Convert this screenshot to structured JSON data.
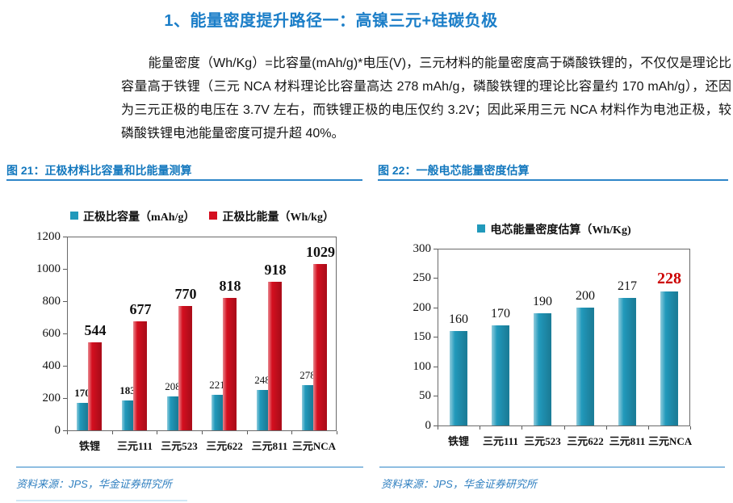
{
  "page": {
    "title": "1、能量密度提升路径一：高镍三元+硅碳负极",
    "paragraph": "能量密度（Wh/Kg）=比容量(mAh/g)*电压(V)，三元材料的能量密度高于磷酸铁锂的，不仅仅是理论比容量高于铁锂（三元 NCA 材料理论比容量高达 278 mAh/g，磷酸铁锂的理论比容量约 170 mAh/g），还因为三元正极的电压在 3.7V 左右，而铁锂正极的电压仅约 3.2V；因此采用三元 NCA 材料作为电池正极，较磷酸铁锂电池能量密度可提升超 40%。"
  },
  "colors": {
    "title_blue": "#1b7ec8",
    "caption_blue": "#1378be",
    "rule_blue": "#2e86c8",
    "source_blue": "#2f7fc0",
    "axis_gray": "#5a5a5a",
    "teal_bar": "#2199bb",
    "red_bar": "#d40f1f",
    "highlight_red": "#cc0000"
  },
  "figures": [
    {
      "caption": "图 21：正极材料比容量和比能量测算",
      "source": "资料来源：JPS，华金证券研究所"
    },
    {
      "caption": "图 22：一般电芯能量密度估算",
      "source": "资料来源：JPS，华金证券研究所"
    }
  ],
  "chart_data": [
    {
      "type": "bar",
      "title": "图 21：正极材料比容量和比能量测算",
      "categories": [
        "铁锂",
        "三元111",
        "三元523",
        "三元622",
        "三元811",
        "三元NCA"
      ],
      "series": [
        {
          "name": "正极比容量（mAh/g）",
          "color": "#2199bb",
          "values": [
            170,
            183,
            208,
            221,
            248,
            278
          ]
        },
        {
          "name": "正极比能量（Wh/kg）",
          "color": "#d40f1f",
          "values": [
            544,
            677,
            770,
            818,
            918,
            1029
          ]
        }
      ],
      "xlabel": "",
      "ylabel": "",
      "ylim": [
        0,
        1200
      ],
      "yticks": [
        0,
        200,
        400,
        600,
        800,
        1000,
        1200
      ],
      "grid": false,
      "legend_position": "top"
    },
    {
      "type": "bar",
      "title": "图 22：一般电芯能量密度估算",
      "categories": [
        "铁锂",
        "三元111",
        "三元523",
        "三元622",
        "三元811",
        "三元NCA"
      ],
      "series": [
        {
          "name": "电芯能量密度估算（Wh/Kg)",
          "color": "#2199bb",
          "values": [
            160,
            170,
            190,
            200,
            217,
            228
          ]
        }
      ],
      "xlabel": "",
      "ylabel": "",
      "ylim": [
        0,
        300
      ],
      "yticks": [
        0,
        50,
        100,
        150,
        200,
        250,
        300
      ],
      "grid": false,
      "legend_position": "top",
      "highlight": {
        "index": 5,
        "color": "#cc0000"
      }
    }
  ]
}
